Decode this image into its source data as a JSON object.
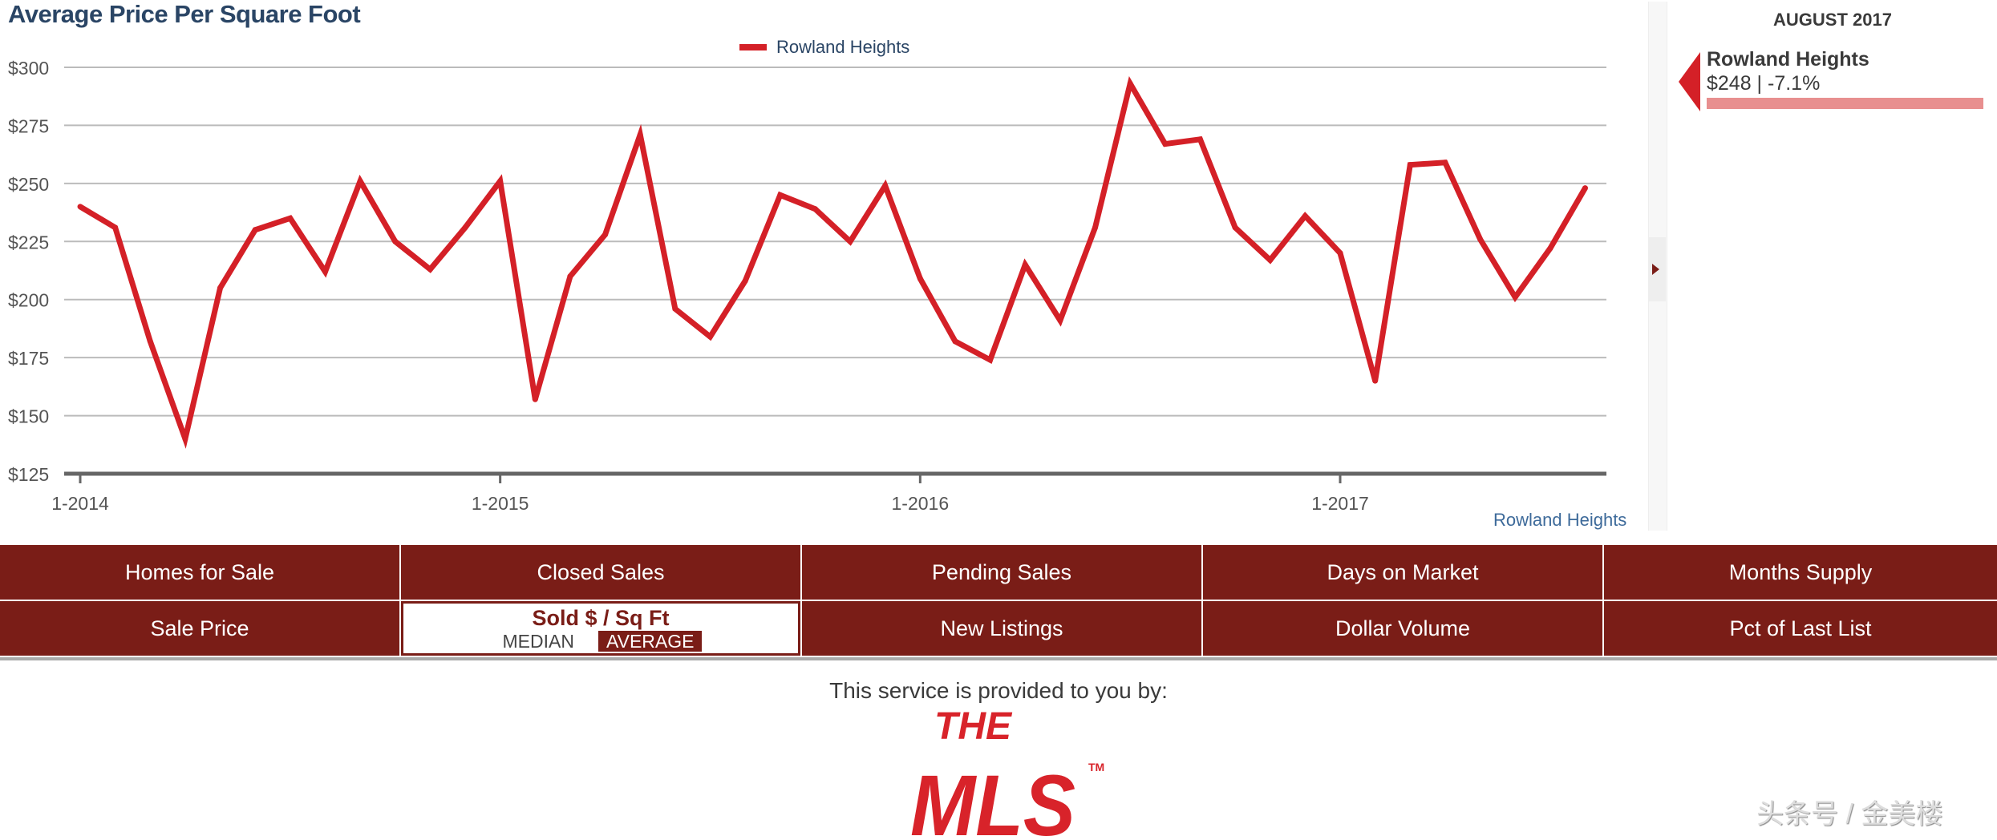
{
  "chart_data": {
    "type": "line",
    "title": "Average Price Per Square Foot",
    "legend": {
      "position": "top-center",
      "entries": [
        "Rowland Heights"
      ]
    },
    "xlabel": "Rowland Heights",
    "ylabel": "",
    "x_tick_labels": [
      "1-2014",
      "1-2015",
      "1-2016",
      "1-2017"
    ],
    "y_tick_labels": [
      "$300",
      "$275",
      "$250",
      "$225",
      "$200",
      "$175",
      "$150",
      "$125"
    ],
    "y_ticks": [
      300,
      275,
      250,
      225,
      200,
      175,
      150,
      125
    ],
    "ylim": [
      125,
      300
    ],
    "x_start": "2014-01",
    "x_end": "2017-08",
    "grid": true,
    "series": [
      {
        "name": "Rowland Heights",
        "color": "#d42027",
        "x": [
          "2014-01",
          "2014-02",
          "2014-03",
          "2014-04",
          "2014-05",
          "2014-06",
          "2014-07",
          "2014-08",
          "2014-09",
          "2014-10",
          "2014-11",
          "2014-12",
          "2015-01",
          "2015-02",
          "2015-03",
          "2015-04",
          "2015-05",
          "2015-06",
          "2015-07",
          "2015-08",
          "2015-09",
          "2015-10",
          "2015-11",
          "2015-12",
          "2016-01",
          "2016-02",
          "2016-03",
          "2016-04",
          "2016-05",
          "2016-06",
          "2016-07",
          "2016-08",
          "2016-09",
          "2016-10",
          "2016-11",
          "2016-12",
          "2017-01",
          "2017-02",
          "2017-03",
          "2017-04",
          "2017-05",
          "2017-06",
          "2017-07",
          "2017-08"
        ],
        "values": [
          240,
          231,
          182,
          140,
          205,
          230,
          235,
          212,
          251,
          225,
          213,
          231,
          251,
          157,
          210,
          228,
          271,
          196,
          184,
          208,
          245,
          239,
          225,
          249,
          209,
          182,
          174,
          215,
          191,
          231,
          293,
          267,
          269,
          231,
          217,
          236,
          220,
          165,
          258,
          259,
          226,
          201,
          222,
          248
        ]
      }
    ]
  },
  "side_panel": {
    "month": "AUGUST 2017",
    "area": "Rowland Heights",
    "value_text": "$248 | -7.1%",
    "bar_fraction": 1.0,
    "marker_color": "#d42027",
    "bar_color": "#e88f8f"
  },
  "nav": {
    "row1": [
      "Homes for Sale",
      "Closed Sales",
      "Pending Sales",
      "Days on Market",
      "Months Supply"
    ],
    "row2": [
      "Sale Price",
      "Sold $ / Sq Ft",
      "New Listings",
      "Dollar Volume",
      "Pct of Last List"
    ],
    "active_label": "Sold $ / Sq Ft",
    "active_options": [
      "MEDIAN",
      "AVERAGE"
    ],
    "active_option_selected": "AVERAGE",
    "color": "#7a1d17"
  },
  "footer": {
    "provided_text": "This service is provided to you by:",
    "logo_text": "THE MLS",
    "logo_tm": "TM",
    "watermark": "头条号 / 金美楼"
  }
}
